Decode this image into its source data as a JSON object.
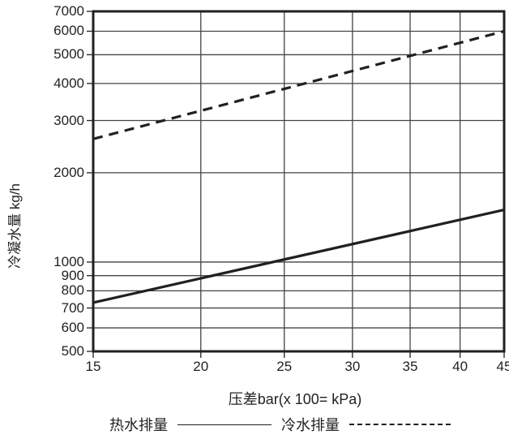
{
  "chart_data": {
    "type": "line",
    "title": "",
    "xlabel": "压差bar(x 100= kPa)",
    "ylabel": "冷凝水量 kg/h",
    "x_scale": "log",
    "y_scale": "log",
    "xlim": [
      15,
      45
    ],
    "ylim": [
      500,
      7000
    ],
    "x_ticks": [
      15,
      20,
      25,
      30,
      35,
      40,
      45
    ],
    "y_ticks": [
      500,
      600,
      700,
      800,
      900,
      1000,
      2000,
      3000,
      4000,
      5000,
      6000,
      7000
    ],
    "grid": true,
    "legend_position": "bottom",
    "series": [
      {
        "name": "热水排量",
        "style": "solid",
        "x": [
          15,
          45
        ],
        "values": [
          730,
          1500
        ]
      },
      {
        "name": "冷水排量",
        "style": "dashed",
        "x": [
          15,
          45
        ],
        "values": [
          2600,
          6000
        ]
      }
    ]
  },
  "axis": {
    "y_tick_labels": [
      "7000",
      "6000",
      "5000",
      "4000",
      "3000",
      "2000",
      "1000",
      "900",
      "800",
      "700",
      "600",
      "500"
    ],
    "x_tick_labels": [
      "15",
      "20",
      "25",
      "30",
      "35",
      "40",
      "45"
    ],
    "ylabel": "冷凝水量 kg/h",
    "xlabel": "压差bar(x 100= kPa)"
  },
  "legend": {
    "hot_label": "热水排量",
    "cold_label": "冷水排量"
  },
  "colors": {
    "ink": "#231f20",
    "grid": "#444444"
  }
}
